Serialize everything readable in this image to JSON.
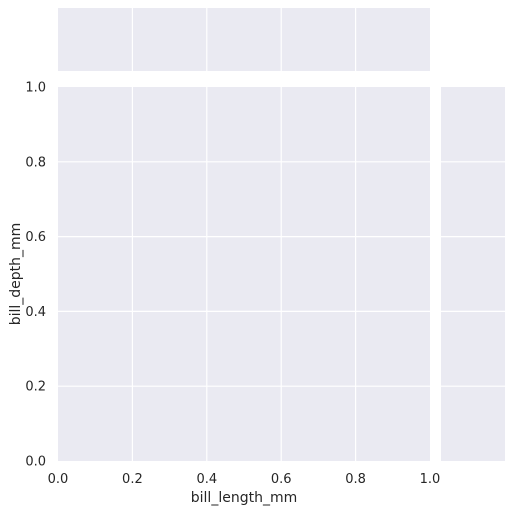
{
  "chart_data": {
    "type": "scatter",
    "kind": "jointplot",
    "xlabel": "bill_length_mm",
    "ylabel": "bill_depth_mm",
    "xlim": [
      0,
      1
    ],
    "ylim": [
      0,
      1
    ],
    "xticks": [
      "0.0",
      "0.2",
      "0.4",
      "0.6",
      "0.8",
      "1.0"
    ],
    "yticks": [
      "0.0",
      "0.2",
      "0.4",
      "0.6",
      "0.8",
      "1.0"
    ],
    "grid": true,
    "x": [],
    "y": [],
    "marginals": [
      "top",
      "right"
    ],
    "colors": {
      "panel_background": "#eaeaf2",
      "grid": "#ffffff",
      "text": "#262626"
    }
  }
}
